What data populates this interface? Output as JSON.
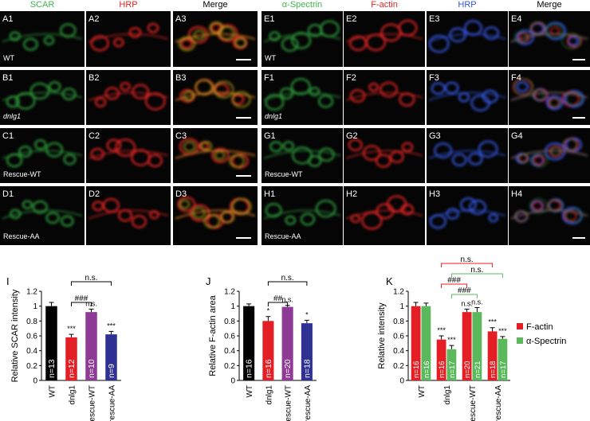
{
  "figure_panels": {
    "left_headers": [
      "SCAR",
      "HRP",
      "Merge"
    ],
    "right_headers": [
      "α-Spectrin",
      "F-actin",
      "HRP",
      "Merge"
    ],
    "left_rows": [
      {
        "labels": [
          "A1",
          "A2",
          "A3"
        ],
        "condition": "WT"
      },
      {
        "labels": [
          "B1",
          "B2",
          "B3"
        ],
        "condition": "dnlg1"
      },
      {
        "labels": [
          "C1",
          "C2",
          "C3"
        ],
        "condition": "Rescue-WT"
      },
      {
        "labels": [
          "D1",
          "D2",
          "D3"
        ],
        "condition": "Rescue-AA"
      }
    ],
    "right_rows": [
      {
        "labels": [
          "E1",
          "E2",
          "E3",
          "E4"
        ],
        "condition": "WT"
      },
      {
        "labels": [
          "F1",
          "F2",
          "F3",
          "F4"
        ],
        "condition": "dnlg1"
      },
      {
        "labels": [
          "G1",
          "G2",
          "G3",
          "G4"
        ],
        "condition": "Rescue-WT"
      },
      {
        "labels": [
          "H1",
          "H2",
          "H3",
          "H4"
        ],
        "condition": "Rescue-AA"
      }
    ]
  },
  "chart_data": [
    {
      "type": "bar",
      "panel_label": "I",
      "y_label": "Relative SCAR intensity",
      "categories": [
        "WT",
        "dnlg1",
        "rescue-WT",
        "rescue-AA"
      ],
      "values": [
        1.0,
        0.58,
        0.92,
        0.62
      ],
      "errors": [
        0.05,
        0.04,
        0.04,
        0.04
      ],
      "colors": [
        "#000000",
        "#e31e24",
        "#8e3b96",
        "#2e3192"
      ],
      "n_labels": [
        "n=13",
        "n=12",
        "n=10",
        "n=9"
      ],
      "significance": [
        null,
        "***",
        "n.s.",
        "***"
      ],
      "brackets": [
        {
          "label": "###"
        },
        {
          "label": "n.s."
        }
      ],
      "ylim": [
        0,
        1.2
      ],
      "yticks": [
        0,
        0.2,
        0.4,
        0.6,
        0.8,
        1,
        1.2
      ]
    },
    {
      "type": "bar",
      "panel_label": "J",
      "y_label": "Relative F-actin area",
      "categories": [
        "WT",
        "dnlg1",
        "rescue-WT",
        "rescue-AA"
      ],
      "values": [
        1.0,
        0.8,
        0.99,
        0.77
      ],
      "errors": [
        0.03,
        0.06,
        0.02,
        0.04
      ],
      "colors": [
        "#000000",
        "#e31e24",
        "#8e3b96",
        "#2e3192"
      ],
      "n_labels": [
        "n=16",
        "n=16",
        "n=20",
        "n=18"
      ],
      "significance": [
        null,
        "*",
        "n.s.",
        "*"
      ],
      "brackets": [
        {
          "label": "##"
        },
        {
          "label": "n.s."
        }
      ],
      "ylim": [
        0,
        1.2
      ],
      "yticks": [
        0,
        0.2,
        0.4,
        0.6,
        0.8,
        1,
        1.2
      ]
    },
    {
      "type": "grouped_bar",
      "panel_label": "K",
      "y_label": "Relative intensity",
      "categories": [
        "WT",
        "dnlg1",
        "rescue-WT",
        "rescue-AA"
      ],
      "series": [
        {
          "name": "F-actin",
          "color": "#e31e24",
          "values": [
            1.0,
            0.55,
            0.92,
            0.66
          ],
          "errors": [
            0.05,
            0.05,
            0.04,
            0.05
          ],
          "n_labels": [
            "n=16",
            "n=16",
            "n=20",
            "n=18"
          ],
          "significance": [
            null,
            "***",
            "n.s.",
            "***"
          ]
        },
        {
          "name": "α-Spectrin",
          "color": "#5cb85c",
          "values": [
            1.0,
            0.42,
            0.92,
            0.56
          ],
          "errors": [
            0.04,
            0.05,
            0.06,
            0.03
          ],
          "n_labels": [
            "n=16",
            "n=17",
            "n=21",
            "n=17"
          ],
          "significance": [
            null,
            "***",
            "n.s.",
            "***"
          ]
        }
      ],
      "brackets": [
        {
          "label": "###",
          "color": "#5cb85c"
        },
        {
          "label": "###",
          "color": "#e31e24"
        },
        {
          "label": "n.s.",
          "color": "#5cb85c"
        },
        {
          "label": "n.s.",
          "color": "#e31e24"
        }
      ],
      "legend": "right",
      "ylim": [
        0,
        1.2
      ],
      "yticks": [
        0,
        0.2,
        0.4,
        0.6,
        0.8,
        1,
        1.2
      ]
    }
  ]
}
